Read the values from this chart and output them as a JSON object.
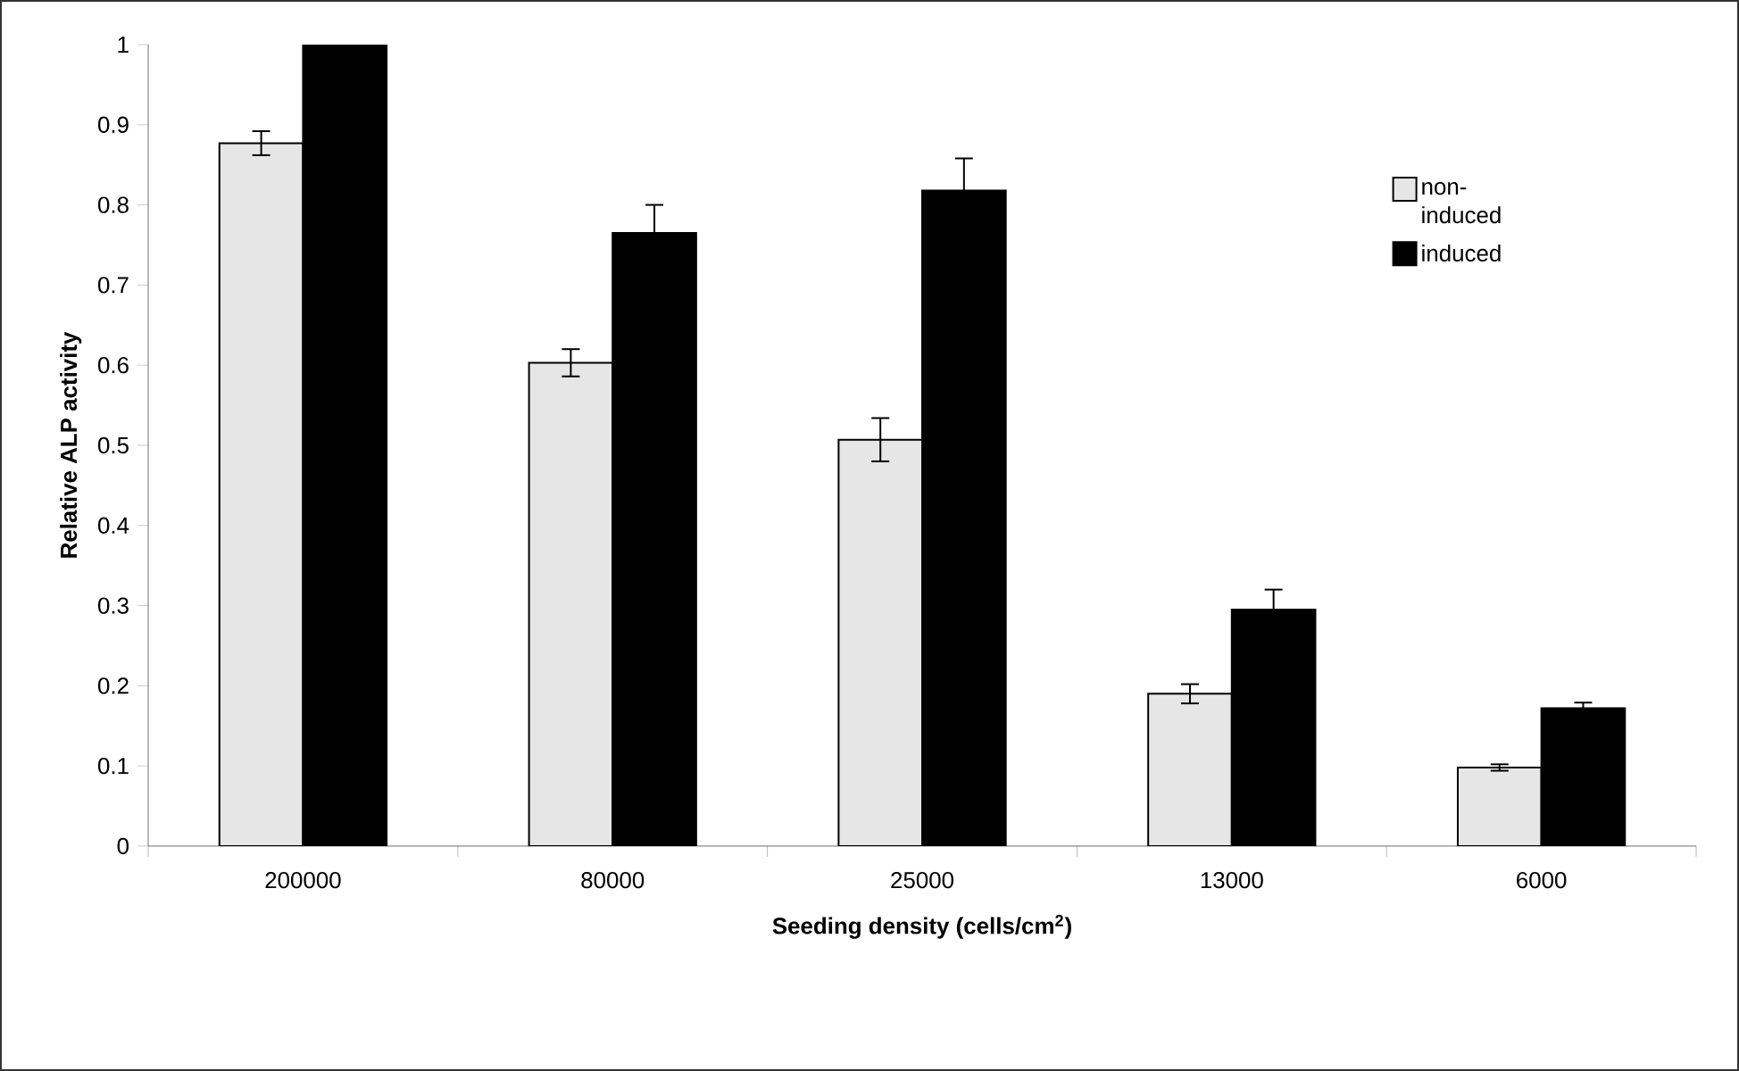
{
  "chart_data": {
    "type": "bar",
    "xlabel": "Seeding density (cells/cm$^{2}$)",
    "ylabel": "Relative ALP activity",
    "categories": [
      "200000",
      "80000",
      "25000",
      "13000",
      "6000"
    ],
    "series": [
      {
        "name": "non-induced",
        "color": "#e6e6e6",
        "values": [
          0.877,
          0.603,
          0.507,
          0.19,
          0.098
        ],
        "errors": [
          0.015,
          0.017,
          0.027,
          0.012,
          0.004
        ]
      },
      {
        "name": "induced",
        "color": "#000000",
        "values": [
          1.0,
          0.765,
          0.818,
          0.295,
          0.172
        ],
        "errors": [
          0.01,
          0.035,
          0.04,
          0.025,
          0.007
        ]
      }
    ],
    "ylim": [
      0,
      1
    ],
    "yticks": [
      0,
      0.1,
      0.2,
      0.3,
      0.4,
      0.5,
      0.6,
      0.7,
      0.8,
      0.9,
      1
    ],
    "grid": false,
    "legend": "top right"
  }
}
